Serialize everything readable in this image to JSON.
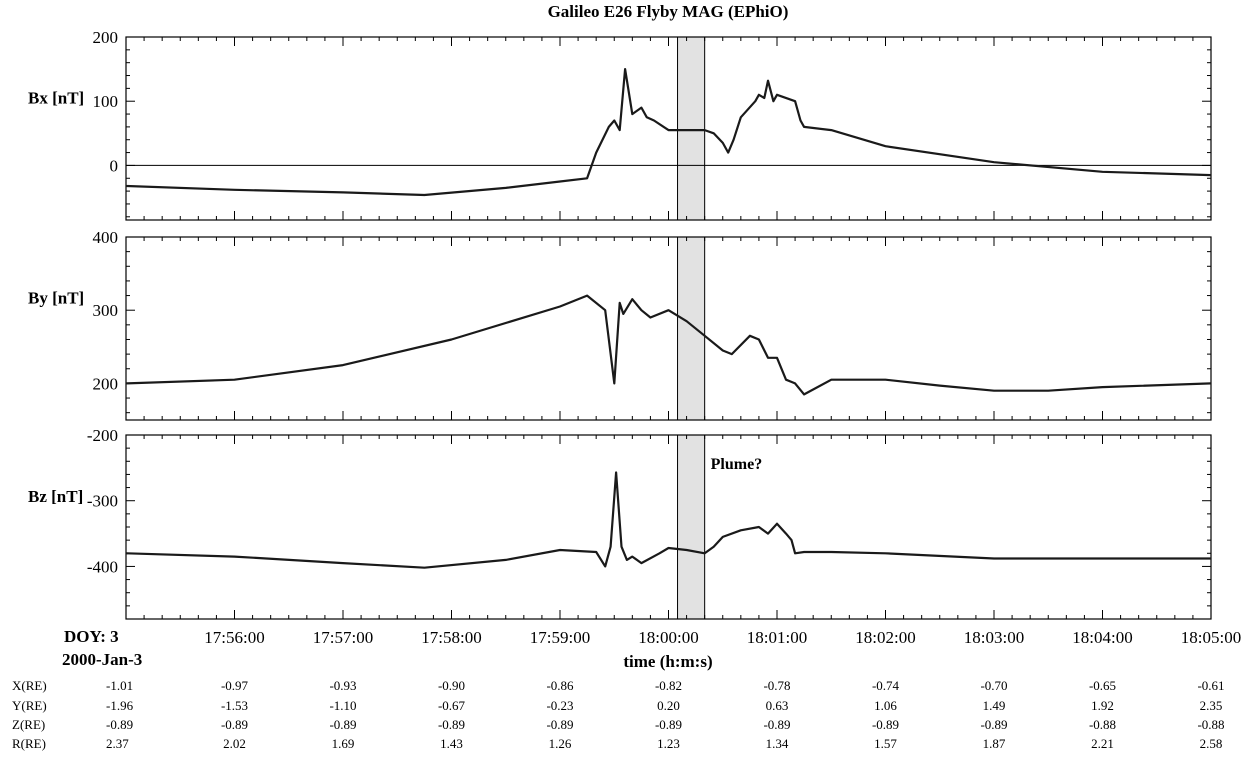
{
  "chart_data": {
    "type": "line",
    "title": "Galileo E26 Flyby MAG (EPhiO)",
    "xlabel": "time (h:m:s)",
    "doy_label": "DOY: 3",
    "date_label": "2000-Jan-3",
    "xlim": [
      "17:55:00",
      "18:05:00"
    ],
    "x_ticks": [
      "17:56:00",
      "17:57:00",
      "17:58:00",
      "17:59:00",
      "18:00:00",
      "18:01:00",
      "18:02:00",
      "18:03:00",
      "18:04:00",
      "18:05:00"
    ],
    "shaded_interval": [
      "18:00:05",
      "18:00:20"
    ],
    "annotation": "Plume?",
    "panels": [
      {
        "ylabel": "Bx [nT]",
        "ylim": [
          -85,
          200
        ],
        "yticks": [
          "200",
          "100",
          "0"
        ],
        "ytick_values": [
          200,
          100,
          0
        ],
        "zero_line": true,
        "series": {
          "x": [
            "17:55:00",
            "17:56:00",
            "17:57:00",
            "17:57:45",
            "17:58:30",
            "17:59:00",
            "17:59:15",
            "17:59:20",
            "17:59:27",
            "17:59:30",
            "17:59:33",
            "17:59:36",
            "17:59:40",
            "17:59:45",
            "17:59:48",
            "17:59:52",
            "18:00:00",
            "18:00:10",
            "18:00:20",
            "18:00:25",
            "18:00:30",
            "18:00:33",
            "18:00:36",
            "18:00:40",
            "18:00:48",
            "18:00:50",
            "18:00:53",
            "18:00:55",
            "18:00:58",
            "18:01:00",
            "18:01:10",
            "18:01:13",
            "18:01:15",
            "18:01:30",
            "18:02:00",
            "18:03:00",
            "18:04:00",
            "18:05:00"
          ],
          "y": [
            -32,
            -38,
            -42,
            -46,
            -35,
            -25,
            -20,
            20,
            60,
            70,
            55,
            150,
            80,
            90,
            75,
            70,
            55,
            55,
            55,
            50,
            35,
            20,
            40,
            75,
            100,
            110,
            105,
            132,
            100,
            110,
            100,
            70,
            60,
            55,
            30,
            5,
            -10,
            -15
          ]
        }
      },
      {
        "ylabel": "By [nT]",
        "ylim": [
          150,
          400
        ],
        "yticks": [
          "400",
          "300",
          "200"
        ],
        "ytick_values": [
          400,
          300,
          200
        ],
        "zero_line": false,
        "series": {
          "x": [
            "17:55:00",
            "17:56:00",
            "17:57:00",
            "17:58:00",
            "17:59:00",
            "17:59:15",
            "17:59:25",
            "17:59:30",
            "17:59:33",
            "17:59:35",
            "17:59:40",
            "17:59:45",
            "17:59:50",
            "18:00:00",
            "18:00:10",
            "18:00:20",
            "18:00:30",
            "18:00:35",
            "18:00:45",
            "18:00:50",
            "18:00:55",
            "18:01:00",
            "18:01:05",
            "18:01:10",
            "18:01:15",
            "18:01:30",
            "18:02:00",
            "18:02:30",
            "18:03:00",
            "18:03:30",
            "18:04:00",
            "18:05:00"
          ],
          "y": [
            200,
            205,
            225,
            260,
            305,
            320,
            300,
            200,
            310,
            295,
            315,
            300,
            290,
            300,
            285,
            265,
            245,
            240,
            265,
            260,
            235,
            235,
            205,
            200,
            185,
            205,
            205,
            197,
            190,
            190,
            195,
            200
          ]
        }
      },
      {
        "ylabel": "Bz [nT]",
        "ylim": [
          -480,
          -200
        ],
        "yticks": [
          "-200",
          "-300",
          "-400"
        ],
        "ytick_values": [
          -200,
          -300,
          -400
        ],
        "zero_line": false,
        "series": {
          "x": [
            "17:55:00",
            "17:56:00",
            "17:57:00",
            "17:57:45",
            "17:58:30",
            "17:59:00",
            "17:59:20",
            "17:59:25",
            "17:59:28",
            "17:59:31",
            "17:59:34",
            "17:59:37",
            "17:59:40",
            "17:59:45",
            "17:59:55",
            "18:00:00",
            "18:00:10",
            "18:00:20",
            "18:00:25",
            "18:00:30",
            "18:00:40",
            "18:00:50",
            "18:00:55",
            "18:01:00",
            "18:01:05",
            "18:01:08",
            "18:01:10",
            "18:01:15",
            "18:01:30",
            "18:02:00",
            "18:03:00",
            "18:04:00",
            "18:05:00"
          ],
          "y": [
            -380,
            -385,
            -395,
            -402,
            -390,
            -375,
            -378,
            -400,
            -370,
            -257,
            -370,
            -390,
            -385,
            -395,
            -380,
            -372,
            -375,
            -380,
            -370,
            -355,
            -345,
            -340,
            -350,
            -335,
            -350,
            -360,
            -380,
            -378,
            -378,
            -380,
            -388,
            -388,
            -388
          ]
        }
      }
    ]
  },
  "ephemeris": {
    "row_labels": [
      "X(RE)",
      "Y(RE)",
      "Z(RE)",
      "R(RE)"
    ],
    "rows": [
      [
        "-1.01",
        "-0.97",
        "-0.93",
        "-0.90",
        "-0.86",
        "-0.82",
        "-0.78",
        "-0.74",
        "-0.70",
        "-0.65",
        "-0.61"
      ],
      [
        "-1.96",
        "-1.53",
        "-1.10",
        "-0.67",
        "-0.23",
        "0.20",
        "0.63",
        "1.06",
        "1.49",
        "1.92",
        "2.35"
      ],
      [
        "-0.89",
        "-0.89",
        "-0.89",
        "-0.89",
        "-0.89",
        "-0.89",
        "-0.89",
        "-0.89",
        "-0.89",
        "-0.88",
        "-0.88"
      ],
      [
        "2.37",
        "2.02",
        "1.69",
        "1.43",
        "1.26",
        "1.23",
        "1.34",
        "1.57",
        "1.87",
        "2.21",
        "2.58"
      ]
    ]
  },
  "colors": {
    "line": "#1a1a1a",
    "shade": "#e2e2e2",
    "axis": "#000000"
  }
}
